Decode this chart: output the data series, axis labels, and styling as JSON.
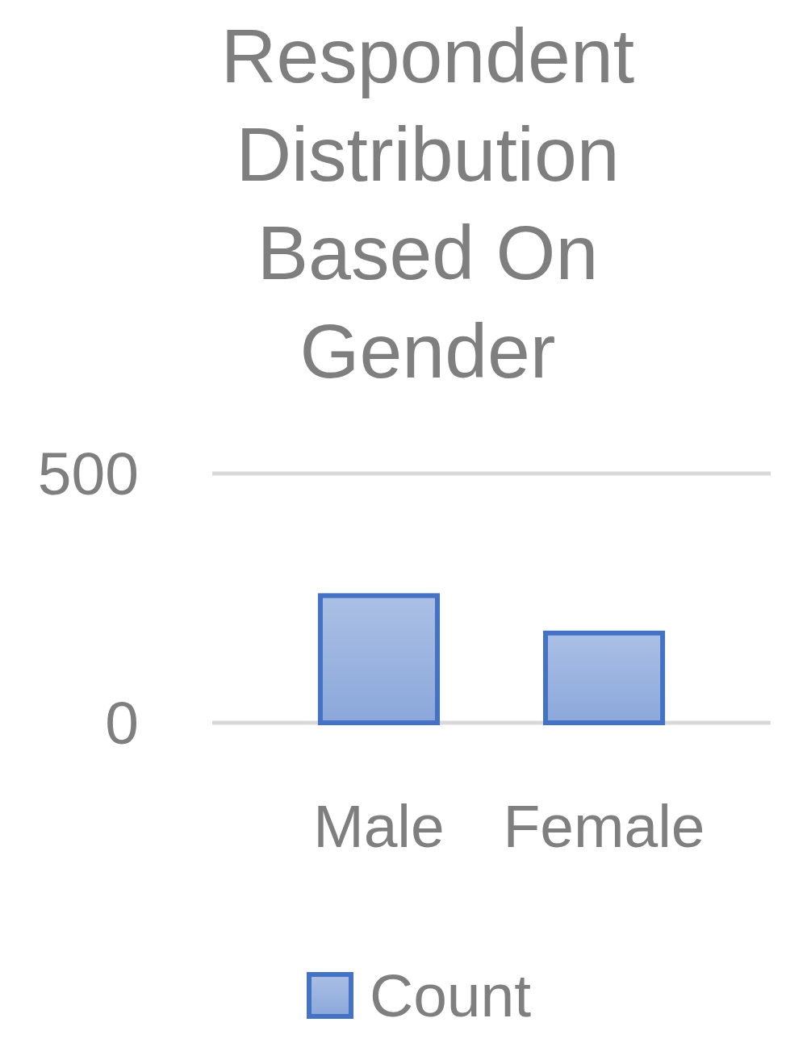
{
  "chart_data": {
    "type": "bar",
    "title": "Respondent Distribution Based On Gender",
    "categories": [
      "Male",
      "Female"
    ],
    "series": [
      {
        "name": "Count",
        "color": "#4472c4",
        "values": [
          255,
          180
        ]
      }
    ],
    "ylim": [
      0,
      500
    ],
    "yticks": [
      0,
      500
    ],
    "legend": "bottom"
  }
}
